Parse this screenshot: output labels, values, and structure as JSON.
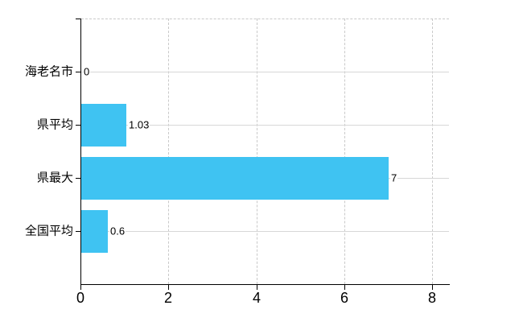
{
  "chart_data": {
    "type": "bar",
    "orientation": "horizontal",
    "title": "",
    "xlabel": "",
    "ylabel": "",
    "categories": [
      "海老名市",
      "県平均",
      "県最大",
      "全国平均"
    ],
    "values": [
      0,
      1.03,
      7,
      0.6
    ],
    "value_labels": [
      "0",
      "1.03",
      "7",
      "0.6"
    ],
    "x_tick_labels": [
      "0",
      "2",
      "4",
      "6",
      "8"
    ],
    "x_tick_values": [
      0,
      2,
      4,
      6,
      8
    ],
    "xlim": [
      0,
      8.38
    ],
    "grid": "on",
    "gridline_style": {
      "horizontal": "solid",
      "vertical": "dashed",
      "top_border": "dashed"
    },
    "legend": "none",
    "bar_color": "#3FC3F2"
  },
  "colors": {
    "background": "#FFFFFF",
    "bar": "#3FC3F2",
    "axis": "#000000",
    "gridline_solid": "#D7D7D7",
    "gridline_dashed": "#C9C9C9",
    "text": "#000000"
  }
}
